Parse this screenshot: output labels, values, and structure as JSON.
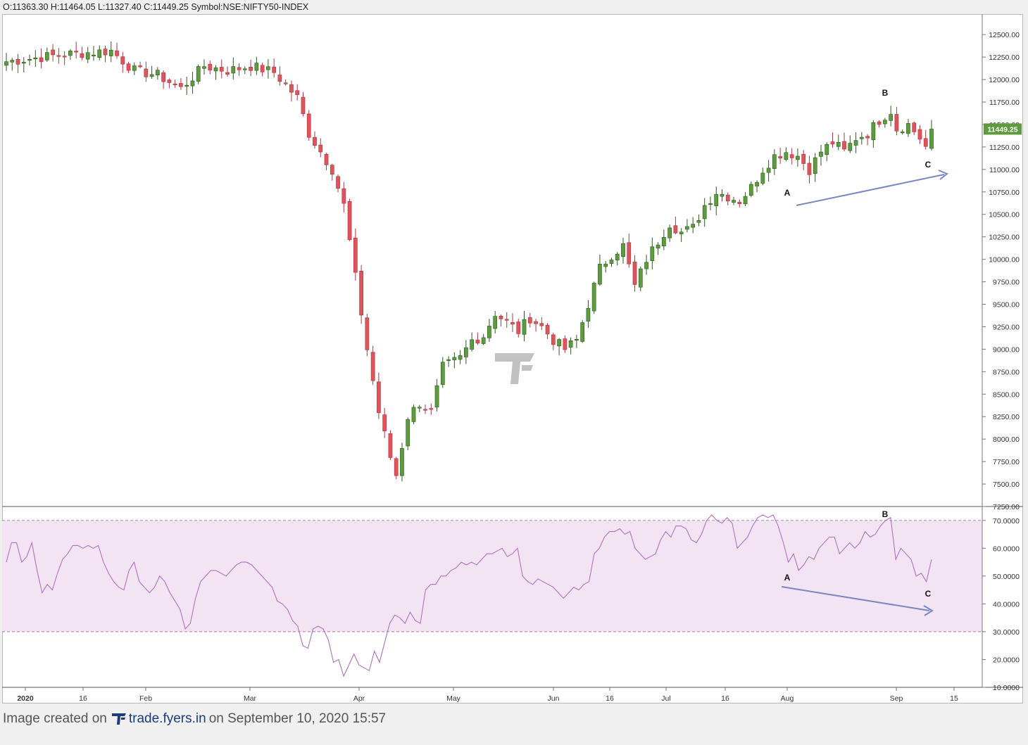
{
  "header": {
    "ohlc_text": "O:11363.30 H:11464.05 L:11327.40 C:11449.25 Symbol:NSE:NIFTY50-INDEX"
  },
  "footer": {
    "prefix": "Image created on",
    "brand": "trade.fyers.in",
    "suffix": "on September 10, 2020 15:57"
  },
  "colors": {
    "up": "#5e9b3e",
    "down": "#e0535b",
    "rsi_line": "#b070c0",
    "rsi_band": "#f3e4f3",
    "trendline": "#7986c0",
    "price_badge": "#5e9b3e"
  },
  "chart_data": [
    {
      "type": "candlestick",
      "symbol": "NSE:NIFTY50-INDEX",
      "last_price": 11449.25,
      "last_price_label": "11449.25",
      "ylim": [
        7250,
        12650
      ],
      "yticks": [
        "12500.00",
        "12250.00",
        "12000.00",
        "11750.00",
        "11500.00",
        "11250.00",
        "11000.00",
        "10750.00",
        "10500.00",
        "10250.00",
        "10000.00",
        "9750.00",
        "9500.00",
        "9250.00",
        "9000.00",
        "8750.00",
        "8500.00",
        "8250.00",
        "8000.00",
        "7750.00",
        "7500.00",
        "7250.00"
      ],
      "xticks": [
        "2020",
        "16",
        "Feb",
        "Mar",
        "Apr",
        "May",
        "Jun",
        "16",
        "Jul",
        "16",
        "Aug",
        "Sep",
        "15"
      ],
      "anchors": [
        [
          0,
          12200
        ],
        [
          10,
          12280
        ],
        [
          14,
          12300
        ],
        [
          18,
          12320
        ],
        [
          22,
          12100
        ],
        [
          26,
          12050
        ],
        [
          30,
          11900
        ],
        [
          34,
          12150
        ],
        [
          38,
          12100
        ],
        [
          42,
          12150
        ],
        [
          46,
          12080
        ],
        [
          50,
          11800
        ],
        [
          52,
          11400
        ],
        [
          54,
          11200
        ],
        [
          56,
          11000
        ],
        [
          58,
          10600
        ],
        [
          60,
          9800
        ],
        [
          62,
          9000
        ],
        [
          64,
          8300
        ],
        [
          66,
          7800
        ],
        [
          67,
          7600
        ],
        [
          69,
          8250
        ],
        [
          71,
          8400
        ],
        [
          73,
          8300
        ],
        [
          75,
          8800
        ],
        [
          78,
          8900
        ],
        [
          80,
          9100
        ],
        [
          82,
          9150
        ],
        [
          84,
          9400
        ],
        [
          86,
          9300
        ],
        [
          88,
          9200
        ],
        [
          90,
          9350
        ],
        [
          92,
          9250
        ],
        [
          94,
          9100
        ],
        [
          96,
          9000
        ],
        [
          98,
          9100
        ],
        [
          100,
          9500
        ],
        [
          102,
          9900
        ],
        [
          104,
          10050
        ],
        [
          106,
          10150
        ],
        [
          108,
          9700
        ],
        [
          110,
          10000
        ],
        [
          112,
          10200
        ],
        [
          114,
          10400
        ],
        [
          116,
          10300
        ],
        [
          118,
          10350
        ],
        [
          120,
          10600
        ],
        [
          122,
          10750
        ],
        [
          124,
          10700
        ],
        [
          126,
          10650
        ],
        [
          128,
          10800
        ],
        [
          130,
          11000
        ],
        [
          132,
          11150
        ],
        [
          134,
          11200
        ],
        [
          136,
          11150
        ],
        [
          138,
          11000
        ],
        [
          140,
          11200
        ],
        [
          142,
          11300
        ],
        [
          144,
          11200
        ],
        [
          146,
          11350
        ],
        [
          148,
          11400
        ],
        [
          150,
          11550
        ],
        [
          152,
          11650
        ],
        [
          153,
          11450
        ],
        [
          155,
          11500
        ],
        [
          157,
          11350
        ],
        [
          158,
          11250
        ],
        [
          159,
          11450
        ]
      ],
      "annotations": [
        {
          "label": "A",
          "pane": "price"
        },
        {
          "label": "B",
          "pane": "price"
        },
        {
          "label": "C",
          "pane": "price"
        }
      ]
    },
    {
      "type": "line",
      "indicator": "RSI",
      "ylim": [
        10,
        75
      ],
      "bands": [
        30,
        70
      ],
      "yticks": [
        "70.0000",
        "60.0000",
        "50.0000",
        "40.0000",
        "30.0000",
        "20.0000",
        "10.0000"
      ],
      "series": [
        {
          "values": [
            55,
            62,
            62,
            55,
            57,
            62,
            52,
            44,
            47,
            45,
            51,
            56,
            58,
            61,
            61,
            60,
            61,
            60,
            61,
            55,
            51,
            48,
            46,
            45,
            52,
            55,
            48,
            46,
            44,
            46,
            50,
            48,
            44,
            41,
            38,
            31,
            33,
            42,
            48,
            50,
            52,
            52,
            51,
            50,
            52,
            54,
            55,
            55,
            54,
            52,
            50,
            48,
            46,
            41,
            40,
            38,
            34,
            32,
            25,
            24,
            31,
            32,
            31,
            27,
            19,
            20,
            14,
            18,
            22,
            18,
            17,
            16,
            23,
            19,
            26,
            33,
            36,
            35,
            33,
            37,
            34,
            33,
            45,
            47,
            47,
            50,
            50,
            52,
            53,
            55,
            54,
            55,
            54,
            56,
            58,
            58,
            59,
            60,
            57,
            58,
            60,
            50,
            48,
            47,
            49,
            48,
            47,
            46,
            44,
            42,
            44,
            46,
            45,
            47,
            48,
            58,
            60,
            64,
            66,
            66,
            67,
            65,
            66,
            60,
            58,
            56,
            57,
            58,
            63,
            66,
            64,
            68,
            68,
            67,
            63,
            62,
            65,
            70,
            72,
            70,
            69,
            71,
            69,
            60,
            62,
            64,
            68,
            71,
            72,
            71,
            72,
            68,
            62,
            55,
            58,
            52,
            54,
            57,
            56,
            60,
            62,
            64,
            64,
            58,
            60,
            62,
            60,
            62,
            66,
            64,
            65,
            68,
            70,
            71,
            56,
            60,
            58,
            56,
            50,
            51,
            48,
            56
          ]
        }
      ],
      "annotations": [
        {
          "label": "A",
          "pane": "rsi"
        },
        {
          "label": "B",
          "pane": "rsi"
        },
        {
          "label": "C",
          "pane": "rsi"
        }
      ]
    }
  ]
}
